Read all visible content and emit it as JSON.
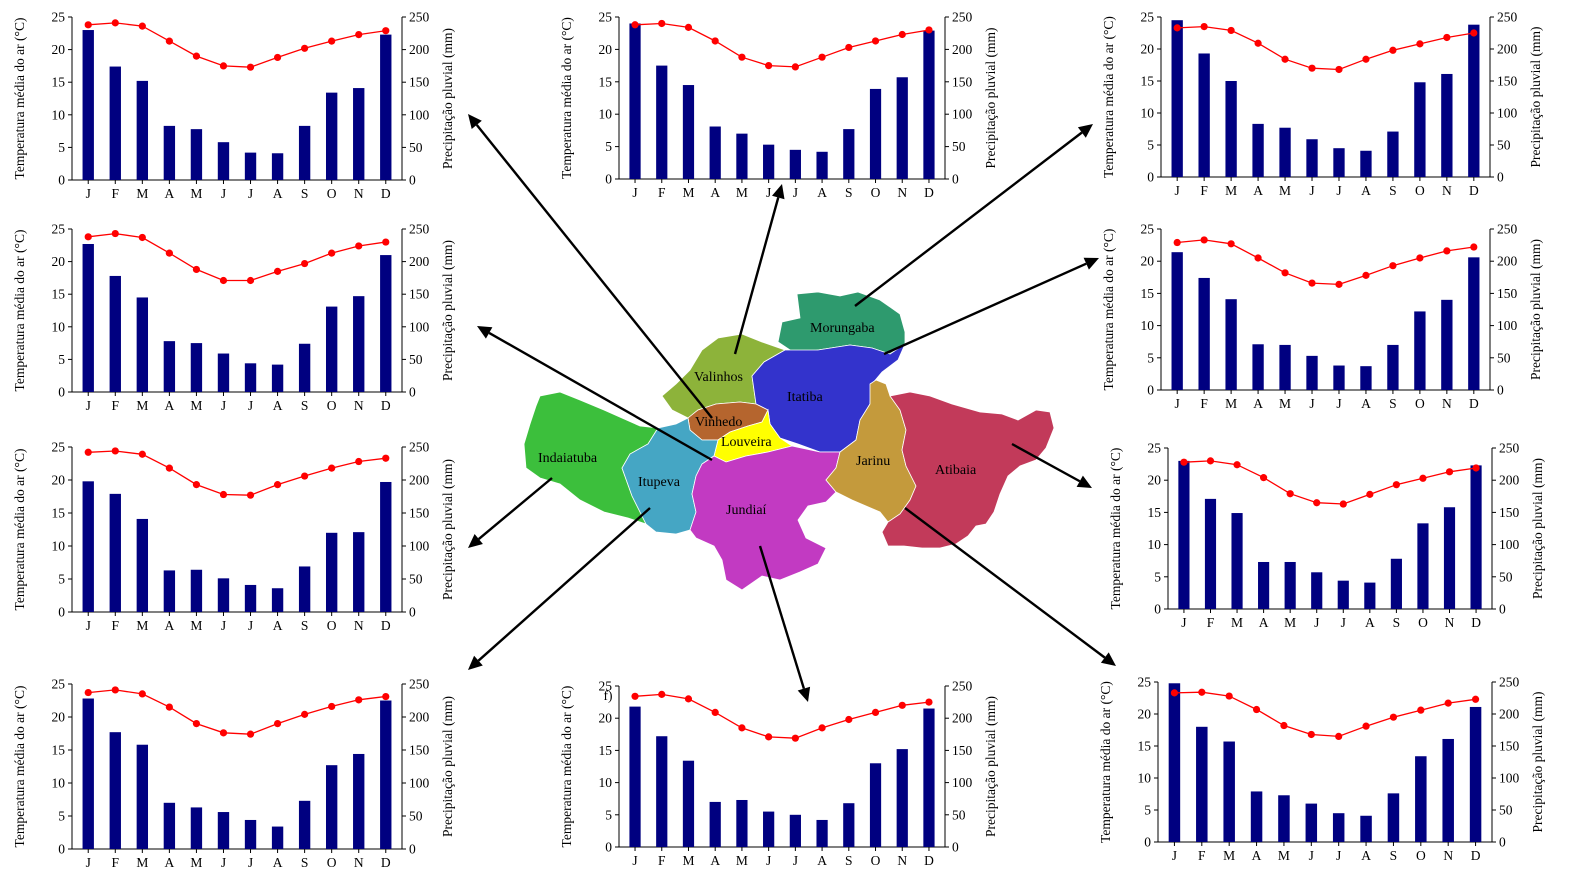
{
  "figure": {
    "temperature_axis_label": "Temperatura média do ar (°C)",
    "precipitation_axis_label": "Precipitação pluvial (mm)",
    "panel_letter_f": "f)"
  },
  "months": [
    "J",
    "F",
    "M",
    "A",
    "M",
    "J",
    "J",
    "A",
    "S",
    "O",
    "N",
    "D"
  ],
  "colors": {
    "bars": "#000080",
    "temperature_line": "#ff0000"
  },
  "map": {
    "municipalities": [
      {
        "name": "Morungaba",
        "color": "#2e9a6e"
      },
      {
        "name": "Valinhos",
        "color": "#8db33a"
      },
      {
        "name": "Itatiba",
        "color": "#3333cc"
      },
      {
        "name": "Vinhedo",
        "color": "#b5652e"
      },
      {
        "name": "Louveira",
        "color": "#ffff00"
      },
      {
        "name": "Indaiatuba",
        "color": "#3cbf3c"
      },
      {
        "name": "Itupeva",
        "color": "#45a6c4"
      },
      {
        "name": "Jundiaí",
        "color": "#c23ac2"
      },
      {
        "name": "Jarinu",
        "color": "#c49a3c"
      },
      {
        "name": "Atibaia",
        "color": "#c23a5a"
      }
    ]
  },
  "chart_data": [
    {
      "type": "bar",
      "panel": "top-left",
      "categories": [
        "J",
        "F",
        "M",
        "A",
        "M",
        "J",
        "J",
        "A",
        "S",
        "O",
        "N",
        "D"
      ],
      "series": [
        {
          "axis": "right",
          "values": [
            230,
            174,
            152,
            83,
            78,
            58,
            42,
            41,
            83,
            134,
            141,
            223
          ]
        },
        {
          "axis": "left",
          "type": "line",
          "values": [
            23.8,
            24.1,
            23.6,
            21.3,
            19.0,
            17.5,
            17.3,
            18.8,
            20.2,
            21.3,
            22.3,
            22.9
          ]
        }
      ],
      "ylabel_left": "Temperatura média do ar (°C)",
      "ylabel_right": "Precipitação pluvial (mm)",
      "ylim_left": [
        0,
        25
      ],
      "ylim_right": [
        0,
        250
      ]
    },
    {
      "type": "bar",
      "panel": "top-center",
      "categories": [
        "J",
        "F",
        "M",
        "A",
        "M",
        "J",
        "J",
        "A",
        "S",
        "O",
        "N",
        "D"
      ],
      "series": [
        {
          "axis": "right",
          "values": [
            240,
            175,
            145,
            81,
            70,
            53,
            45,
            42,
            77,
            139,
            157,
            229
          ]
        },
        {
          "axis": "left",
          "type": "line",
          "values": [
            23.8,
            24.0,
            23.4,
            21.3,
            18.8,
            17.5,
            17.3,
            18.8,
            20.3,
            21.3,
            22.3,
            23.0
          ]
        }
      ],
      "ylabel_left": "Temperatura média do ar (°C)",
      "ylabel_right": "Precipitação pluvial (mm)",
      "ylim_left": [
        0,
        25
      ],
      "ylim_right": [
        0,
        250
      ]
    },
    {
      "type": "bar",
      "panel": "top-right",
      "categories": [
        "J",
        "F",
        "M",
        "A",
        "M",
        "J",
        "J",
        "A",
        "S",
        "O",
        "N",
        "D"
      ],
      "series": [
        {
          "axis": "right",
          "values": [
            245,
            193,
            150,
            83,
            77,
            59,
            45,
            41,
            71,
            148,
            161,
            238
          ]
        },
        {
          "axis": "left",
          "type": "line",
          "values": [
            23.3,
            23.5,
            22.9,
            20.9,
            18.4,
            17.0,
            16.8,
            18.4,
            19.8,
            20.8,
            21.8,
            22.5
          ]
        }
      ],
      "ylabel_left": "Temperatura média do ar (°C)",
      "ylabel_right": "Precipitação pluvial (mm)",
      "ylim_left": [
        0,
        25
      ],
      "ylim_right": [
        0,
        250
      ]
    },
    {
      "type": "bar",
      "panel": "second-row-left",
      "categories": [
        "J",
        "F",
        "M",
        "A",
        "M",
        "J",
        "J",
        "A",
        "S",
        "O",
        "N",
        "D"
      ],
      "series": [
        {
          "axis": "right",
          "values": [
            227,
            178,
            145,
            78,
            75,
            59,
            44,
            42,
            74,
            131,
            147,
            210
          ]
        },
        {
          "axis": "left",
          "type": "line",
          "values": [
            23.8,
            24.3,
            23.7,
            21.3,
            18.8,
            17.1,
            17.1,
            18.5,
            19.7,
            21.3,
            22.4,
            23.0
          ]
        }
      ],
      "ylabel_left": "Temperatura média do ar (°C)",
      "ylabel_right": "Precipitação pluvial (mm)",
      "ylim_left": [
        0,
        25
      ],
      "ylim_right": [
        0,
        250
      ]
    },
    {
      "type": "bar",
      "panel": "second-row-right",
      "categories": [
        "J",
        "F",
        "M",
        "A",
        "M",
        "J",
        "J",
        "A",
        "S",
        "O",
        "N",
        "D"
      ],
      "series": [
        {
          "axis": "right",
          "values": [
            214,
            174,
            141,
            71,
            70,
            53,
            38,
            37,
            70,
            122,
            140,
            206
          ]
        },
        {
          "axis": "left",
          "type": "line",
          "values": [
            22.9,
            23.3,
            22.7,
            20.5,
            18.2,
            16.6,
            16.4,
            17.8,
            19.3,
            20.5,
            21.6,
            22.2
          ]
        }
      ],
      "ylabel_left": "Temperatura média do ar (°C)",
      "ylabel_right": "Precipitação pluvial (mm)",
      "ylim_left": [
        0,
        25
      ],
      "ylim_right": [
        0,
        250
      ]
    },
    {
      "type": "bar",
      "panel": "third-row-left",
      "categories": [
        "J",
        "F",
        "M",
        "A",
        "M",
        "J",
        "J",
        "A",
        "S",
        "O",
        "N",
        "D"
      ],
      "series": [
        {
          "axis": "right",
          "values": [
            198,
            179,
            141,
            63,
            64,
            51,
            41,
            36,
            69,
            120,
            121,
            197
          ]
        },
        {
          "axis": "left",
          "type": "line",
          "values": [
            24.2,
            24.4,
            23.9,
            21.8,
            19.3,
            17.8,
            17.7,
            19.3,
            20.6,
            21.8,
            22.8,
            23.3
          ]
        }
      ],
      "ylabel_left": "Temperatura média do ar (°C)",
      "ylabel_right": "Precipitação pluvial (mm)",
      "ylim_left": [
        0,
        25
      ],
      "ylim_right": [
        0,
        250
      ]
    },
    {
      "type": "bar",
      "panel": "third-row-right",
      "categories": [
        "J",
        "F",
        "M",
        "A",
        "M",
        "J",
        "J",
        "A",
        "S",
        "O",
        "N",
        "D"
      ],
      "series": [
        {
          "axis": "right",
          "values": [
            230,
            171,
            149,
            73,
            73,
            57,
            44,
            41,
            78,
            133,
            158,
            223
          ]
        },
        {
          "axis": "left",
          "type": "line",
          "values": [
            22.8,
            23.0,
            22.4,
            20.4,
            17.9,
            16.5,
            16.3,
            17.8,
            19.3,
            20.3,
            21.3,
            21.9
          ]
        }
      ],
      "ylabel_left": "Temperatura média do ar (°C)",
      "ylabel_right": "Precipitação pluvial (mm)",
      "ylim_left": [
        0,
        25
      ],
      "ylim_right": [
        0,
        250
      ]
    },
    {
      "type": "bar",
      "panel": "bottom-left",
      "categories": [
        "J",
        "F",
        "M",
        "A",
        "M",
        "J",
        "J",
        "A",
        "S",
        "O",
        "N",
        "D"
      ],
      "series": [
        {
          "axis": "right",
          "values": [
            228,
            177,
            158,
            70,
            63,
            56,
            44,
            34,
            73,
            127,
            144,
            225
          ]
        },
        {
          "axis": "left",
          "type": "line",
          "values": [
            23.7,
            24.1,
            23.5,
            21.5,
            19.0,
            17.6,
            17.4,
            19.0,
            20.4,
            21.6,
            22.6,
            23.1
          ]
        }
      ],
      "ylabel_left": "Temperatura média do ar (°C)",
      "ylabel_right": "Precipitação pluvial (mm)",
      "ylim_left": [
        0,
        25
      ],
      "ylim_right": [
        0,
        250
      ]
    },
    {
      "type": "bar",
      "panel": "bottom-center",
      "label": "f)",
      "categories": [
        "J",
        "F",
        "M",
        "A",
        "M",
        "J",
        "J",
        "A",
        "S",
        "O",
        "N",
        "D"
      ],
      "series": [
        {
          "axis": "right",
          "values": [
            218,
            172,
            134,
            70,
            73,
            55,
            50,
            42,
            68,
            130,
            152,
            215
          ]
        },
        {
          "axis": "left",
          "type": "line",
          "values": [
            23.4,
            23.7,
            23.0,
            20.9,
            18.5,
            17.1,
            16.9,
            18.5,
            19.8,
            20.9,
            22.0,
            22.5
          ]
        }
      ],
      "ylabel_left": "Temperatura média do ar (°C)",
      "ylabel_right": "Precipitação pluvial (mm)",
      "ylim_left": [
        0,
        25
      ],
      "ylim_right": [
        0,
        250
      ]
    },
    {
      "type": "bar",
      "panel": "bottom-right",
      "categories": [
        "J",
        "F",
        "M",
        "A",
        "M",
        "J",
        "J",
        "A",
        "S",
        "O",
        "N",
        "D"
      ],
      "series": [
        {
          "axis": "right",
          "values": [
            248,
            180,
            157,
            79,
            73,
            60,
            45,
            41,
            76,
            134,
            161,
            211
          ]
        },
        {
          "axis": "left",
          "type": "line",
          "values": [
            23.3,
            23.4,
            22.8,
            20.7,
            18.2,
            16.8,
            16.5,
            18.1,
            19.5,
            20.6,
            21.7,
            22.3
          ]
        }
      ],
      "ylabel_left": "Temperatura média do ar (°C)",
      "ylabel_right": "Precipitação pluvial (mm)",
      "ylim_left": [
        0,
        25
      ],
      "ylim_right": [
        0,
        250
      ]
    }
  ]
}
